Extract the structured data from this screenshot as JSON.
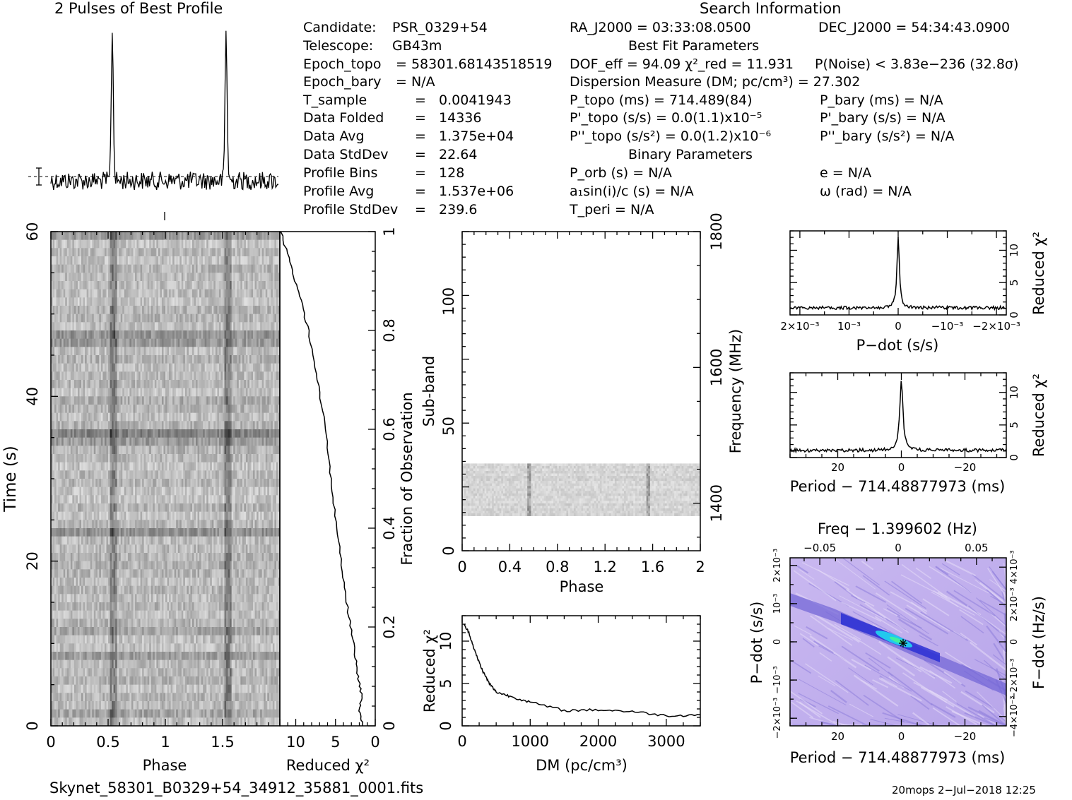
{
  "header": {
    "profile_title": "2 Pulses of Best Profile",
    "search_title": "Search Information",
    "best_fit_title": "Best Fit Parameters",
    "binary_title": "Binary Parameters"
  },
  "info_left": [
    {
      "label": "Candidate:",
      "value": "PSR_0329+54"
    },
    {
      "label": "Telescope:",
      "value": "GB43m"
    },
    {
      "label": "Epoch_topo",
      "value": "= 58301.68143518519"
    },
    {
      "label": "Epoch_bary",
      "value": "= N/A"
    },
    {
      "label": "T_sample",
      "value": "=   0.0041943"
    },
    {
      "label": "Data Folded",
      "value": "=   14336"
    },
    {
      "label": "Data Avg",
      "value": "=   1.375e+04"
    },
    {
      "label": "Data StdDev",
      "value": "=   22.64"
    },
    {
      "label": "Profile Bins",
      "value": "=   128"
    },
    {
      "label": "Profile Avg",
      "value": "=   1.537e+06"
    },
    {
      "label": "Profile StdDev",
      "value": "=   239.6"
    }
  ],
  "info_mid": {
    "ra": "RA_J2000 = 03:33:08.0500",
    "dof": "DOF_eff = 94.09   χ²_red = 11.931",
    "dm": "Dispersion Measure (DM; pc/cm³) = 27.302",
    "p_topo": "P_topo (ms) =  714.489(84)",
    "pd_topo": "P'_topo (s/s) = 0.0(1.1)x10⁻⁵",
    "pdd_topo": "P''_topo (s/s²) = 0.0(1.2)x10⁻⁶",
    "p_orb": "P_orb (s) = N/A",
    "a1": "a₁sin(i)/c (s) = N/A",
    "t_peri": "T_peri = N/A"
  },
  "info_right": {
    "dec": "DEC_J2000 = 54:34:43.0900",
    "pnoise": "P(Noise) < 3.83e−236   (32.8σ)",
    "p_bary": "P_bary (ms) = N/A",
    "pd_bary": "P'_bary (s/s) = N/A",
    "pdd_bary": "P''_bary (s/s²) = N/A",
    "e": "e = N/A",
    "omega": "ω (rad) = N/A"
  },
  "footer": {
    "filename": "Skynet_58301_B0329+54_34912_35881_0001.fits",
    "stamp": "20mops   2−Jul−2018 12:25"
  },
  "chart_data": [
    {
      "type": "line",
      "title": "2 Pulses of Best Profile",
      "x": "phase 0–2 (two pulses)",
      "pulse_peaks_phase": [
        0.54,
        1.54
      ],
      "ylim": "normalized"
    },
    {
      "type": "heatmap",
      "name": "time-phase",
      "xlabel": "Phase",
      "ylabel": "Time (s)",
      "xlim": [
        0,
        2
      ],
      "ylim": [
        0,
        60
      ],
      "x_ticks": [
        "0",
        "0.5",
        "1",
        "1.5"
      ],
      "y_ticks": [
        "0",
        "20",
        "40",
        "60"
      ],
      "pulse_phase": [
        0.54,
        1.54
      ]
    },
    {
      "type": "line",
      "name": "chi2-vs-fraction",
      "xlabel": "Reduced χ²",
      "ylabel": "Fraction of Observation",
      "xlim": [
        12,
        0
      ],
      "ylim": [
        0,
        1
      ],
      "x_ticks": [
        "10",
        "5",
        "0"
      ],
      "y_ticks": [
        "0",
        "0.2",
        "0.4",
        "0.6",
        "0.8",
        "1"
      ],
      "points": [
        [
          1.5,
          0
        ],
        [
          2,
          0.03
        ],
        [
          1.7,
          0.06
        ],
        [
          2.2,
          0.1
        ],
        [
          2.6,
          0.15
        ],
        [
          3.3,
          0.22
        ],
        [
          4.0,
          0.3
        ],
        [
          4.9,
          0.4
        ],
        [
          5.6,
          0.5
        ],
        [
          6.3,
          0.6
        ],
        [
          7.2,
          0.7
        ],
        [
          8.4,
          0.8
        ],
        [
          9.5,
          0.87
        ],
        [
          10.6,
          0.93
        ],
        [
          11.9,
          1
        ]
      ]
    },
    {
      "type": "heatmap",
      "name": "subband-phase",
      "xlabel": "Phase",
      "ylabel": "Sub-band",
      "y2label": "Frequency (MHz)",
      "xlim": [
        0,
        2
      ],
      "ylim": [
        0,
        128
      ],
      "x_ticks": [
        "0",
        "0.4",
        "0.8",
        "1.2",
        "1.6",
        "2"
      ],
      "y_ticks": [
        "0",
        "50",
        "100"
      ],
      "y2_ticks": [
        "1400",
        "1600",
        "1800"
      ],
      "band_range": [
        14,
        35
      ],
      "pulse_phase": [
        0.55,
        1.55
      ]
    },
    {
      "type": "line",
      "name": "chi2-vs-dm",
      "xlabel": "DM (pc/cm³)",
      "ylabel": "Reduced χ²",
      "xlim": [
        0,
        3500
      ],
      "ylim": [
        0,
        13
      ],
      "x_ticks": [
        "0",
        "1000",
        "2000",
        "3000"
      ],
      "y_ticks": [
        "0",
        "5",
        "10"
      ],
      "points": [
        [
          27,
          11.9
        ],
        [
          100,
          11
        ],
        [
          200,
          8.5
        ],
        [
          300,
          6.5
        ],
        [
          400,
          5
        ],
        [
          500,
          4
        ],
        [
          700,
          3.5
        ],
        [
          1000,
          2.8
        ],
        [
          1500,
          1.8
        ],
        [
          2000,
          1.9
        ],
        [
          2500,
          1.7
        ],
        [
          3000,
          1.2
        ],
        [
          3500,
          1.3
        ]
      ]
    },
    {
      "type": "line",
      "name": "chi2-vs-pdot",
      "xlabel": "P−dot (s/s)",
      "ylabel": "Reduced χ²",
      "xlim": [
        0.0022,
        -0.0022
      ],
      "ylim": [
        0,
        13
      ],
      "x_ticks": [
        "2×10⁻³",
        "10⁻³",
        "0",
        "−10⁻³",
        "−2×10⁻³"
      ],
      "y_ticks": [
        "0",
        "5",
        "10"
      ],
      "peak": [
        0,
        11.9
      ],
      "baseline": 1.3
    },
    {
      "type": "line",
      "name": "chi2-vs-period",
      "xlabel": "Period − 714.48877973 (ms)",
      "ylabel": "Reduced χ²",
      "xlim": [
        35,
        -33
      ],
      "ylim": [
        0,
        13
      ],
      "x_ticks": [
        "20",
        "0",
        "−20"
      ],
      "y_ticks": [
        "0",
        "5",
        "10"
      ],
      "peak": [
        0,
        11.9
      ],
      "baseline": 1.3
    },
    {
      "type": "heatmap",
      "name": "period-pdot",
      "title": "Freq − 1.399602 (Hz)",
      "xlabel": "Period − 714.48877973 (ms)",
      "ylabel": "P−dot (s/s)",
      "y2label": "F−dot (Hz/s)",
      "x_ticks": [
        "20",
        "0",
        "−20"
      ],
      "top_ticks": [
        "−0.05",
        "0",
        "0.05"
      ],
      "y_ticks": [
        "2×10⁻³",
        "10⁻³",
        "0",
        "−10⁻³",
        "−2×10⁻³"
      ],
      "y2_ticks": [
        "−4×10⁻³",
        "−2×10⁻³",
        "0",
        "2×10⁻³",
        "4×10⁻³"
      ],
      "best": [
        0,
        0
      ]
    }
  ]
}
